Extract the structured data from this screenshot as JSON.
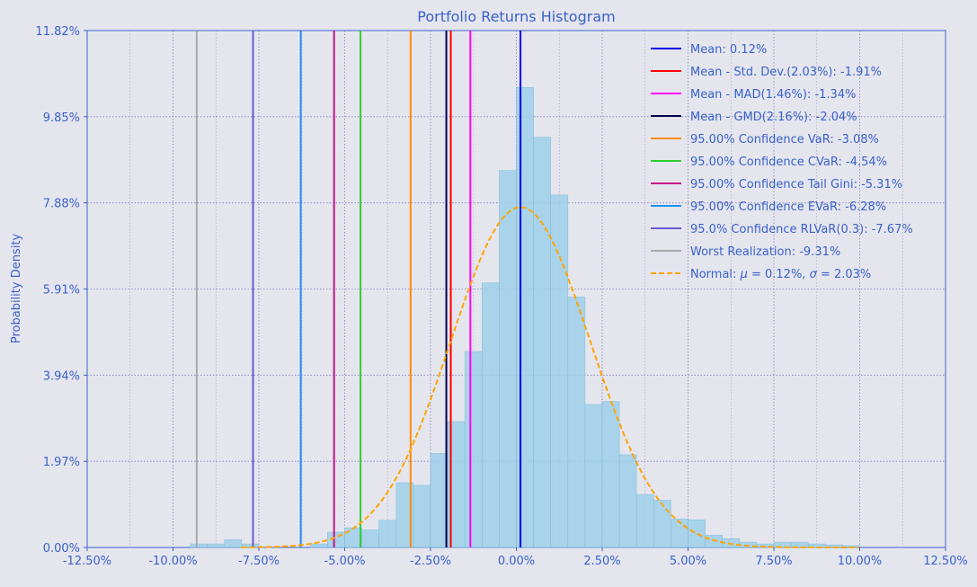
{
  "chart_data": {
    "type": "bar",
    "title": "Portfolio Returns Histogram",
    "xlabel": "",
    "ylabel": "Probability Density",
    "xlim": [
      -12.5,
      12.5
    ],
    "ylim": [
      0,
      11.82
    ],
    "x_ticks": [
      -12.5,
      -10,
      -7.5,
      -5,
      -2.5,
      0,
      2.5,
      5,
      7.5,
      10,
      12.5
    ],
    "x_tick_labels": [
      "-12.50%",
      "-10.00%",
      "-7.50%",
      "-5.00%",
      "-2.50%",
      "0.00%",
      "2.50%",
      "5.00%",
      "7.50%",
      "10.00%",
      "12.50%"
    ],
    "y_ticks": [
      0,
      1.97,
      3.94,
      5.91,
      7.88,
      9.85,
      11.82
    ],
    "y_tick_labels": [
      "0.00%",
      "1.97%",
      "3.94%",
      "5.91%",
      "7.88%",
      "9.85%",
      "11.82%"
    ],
    "grid": true,
    "legend_position": "top-right",
    "colors": {
      "background": "#e5e5ee",
      "text": "#3a62c9",
      "grid": "#8080b8",
      "bar_fill": "#9ed0ea",
      "bar_edge": "#7ebcd8"
    },
    "histogram": {
      "bin_width": 0.5,
      "bin_lefts": [
        -9.5,
        -9.0,
        -8.5,
        -8.0,
        -7.5,
        -7.0,
        -6.5,
        -6.0,
        -5.5,
        -5.0,
        -4.5,
        -4.0,
        -3.5,
        -3.0,
        -2.5,
        -2.0,
        -1.5,
        -1.0,
        -0.5,
        0.0,
        0.5,
        1.0,
        1.5,
        2.0,
        2.5,
        3.0,
        3.5,
        4.0,
        4.5,
        5.0,
        5.5,
        6.0,
        6.5,
        7.0,
        7.5,
        8.0,
        8.5,
        9.0,
        9.5
      ],
      "values": [
        0.08,
        0.08,
        0.18,
        0.08,
        0.0,
        0.0,
        0.0,
        0.08,
        0.35,
        0.45,
        0.4,
        0.62,
        1.48,
        1.42,
        2.15,
        2.88,
        4.48,
        6.05,
        8.62,
        10.52,
        9.38,
        8.06,
        5.73,
        3.27,
        3.34,
        2.12,
        1.21,
        1.08,
        0.65,
        0.63,
        0.28,
        0.2,
        0.12,
        0.08,
        0.12,
        0.12,
        0.08,
        0.06,
        0.04
      ]
    },
    "normal_curve": {
      "mean": 0.12,
      "std": 2.03,
      "color": "#ffa500",
      "style": "dashed"
    },
    "vertical_lines": [
      {
        "name": "Mean: 0.12%",
        "x": 0.12,
        "color": "#0000e6"
      },
      {
        "name": "Mean - Std. Dev.(2.03%): -1.91%",
        "x": -1.91,
        "color": "#ff0000"
      },
      {
        "name": "Mean - MAD(1.46%): -1.34%",
        "x": -1.34,
        "color": "#ff00ff"
      },
      {
        "name": "Mean - GMD(2.16%): -2.04%",
        "x": -2.04,
        "color": "#00004d"
      },
      {
        "name": "95.00% Confidence VaR: -3.08%",
        "x": -3.08,
        "color": "#ff8c00"
      },
      {
        "name": "95.00% Confidence CVaR: -4.54%",
        "x": -4.54,
        "color": "#32cd32"
      },
      {
        "name": "95.00% Confidence Tail Gini: -5.31%",
        "x": -5.31,
        "color": "#c71585"
      },
      {
        "name": "95.00% Confidence EVaR: -6.28%",
        "x": -6.28,
        "color": "#1e90ff"
      },
      {
        "name": "95.0% Confidence RLVaR(0.3): -7.67%",
        "x": -7.67,
        "color": "#6a5acd"
      },
      {
        "name": "Worst Realization: -9.31%",
        "x": -9.31,
        "color": "#a9a9a9"
      }
    ],
    "normal_legend": {
      "prefix": "Normal: ",
      "mu_symbol": "μ",
      "mu_text": " = 0.12%, ",
      "sigma_symbol": "σ",
      "sigma_text": " = 2.03%"
    }
  }
}
